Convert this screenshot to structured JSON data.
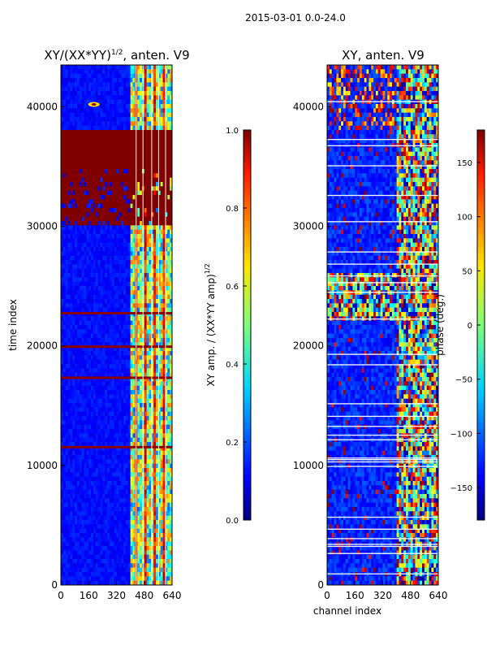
{
  "chart_data": [
    {
      "type": "heatmap",
      "suptitle": "2015-03-01 0.0-24.0",
      "title_main": "XY/(XX*YY)",
      "title_sup": "1/2",
      "title_tail": ", anten. V9",
      "xlabel": "",
      "ylabel": "time index",
      "xlim": [
        0,
        640
      ],
      "ylim": [
        0,
        43500
      ],
      "x_ticks": [
        0,
        160,
        320,
        480,
        640
      ],
      "y_ticks": [
        0,
        10000,
        20000,
        30000,
        40000
      ],
      "colorbar": {
        "label_main": "XY amp. / (XX*YY amp)",
        "label_sup": "1/2",
        "range": [
          0.0,
          1.0
        ],
        "ticks": [
          "0.0",
          "0.2",
          "0.4",
          "0.6",
          "0.8",
          "1.0"
        ],
        "colormap": "jet"
      },
      "features": [
        {
          "kind": "saturated_band",
          "y_range": [
            30000,
            38200
          ],
          "value": 1.0
        },
        {
          "kind": "saturated_band",
          "y_range": [
            34800,
            38200
          ],
          "value": 1.0
        },
        {
          "kind": "saturated_line",
          "y": 19900,
          "value": 1.0
        },
        {
          "kind": "saturated_line",
          "y": 11500,
          "value": 1.0
        },
        {
          "kind": "hot_spot",
          "x": 190,
          "y": 40200,
          "value": 1.0
        },
        {
          "kind": "bright_channel_region",
          "x_range": [
            400,
            640
          ],
          "value": 0.6
        }
      ]
    },
    {
      "type": "heatmap",
      "title_main": "XY, anten. V9",
      "xlabel": "channel index",
      "ylabel": "",
      "xlim": [
        0,
        640
      ],
      "ylim": [
        0,
        43500
      ],
      "x_ticks": [
        0,
        160,
        320,
        480,
        640
      ],
      "y_ticks": [
        0,
        10000,
        20000,
        30000,
        40000
      ],
      "colorbar": {
        "label_main": "phase (deg.)",
        "range": [
          -180,
          180
        ],
        "ticks": [
          "150",
          "100",
          "50",
          "0",
          "−50",
          "−100",
          "−150"
        ],
        "tick_values": [
          150,
          100,
          50,
          0,
          -50,
          -100,
          -150
        ],
        "colormap": "jet"
      },
      "features": [
        {
          "kind": "phase_noise_region",
          "x_range": [
            400,
            640
          ],
          "value_range": [
            -180,
            180
          ]
        },
        {
          "kind": "flagged_lines",
          "count": 30,
          "value": "white"
        },
        {
          "kind": "noisy_band",
          "y_range": [
            22000,
            26000
          ]
        }
      ]
    }
  ]
}
